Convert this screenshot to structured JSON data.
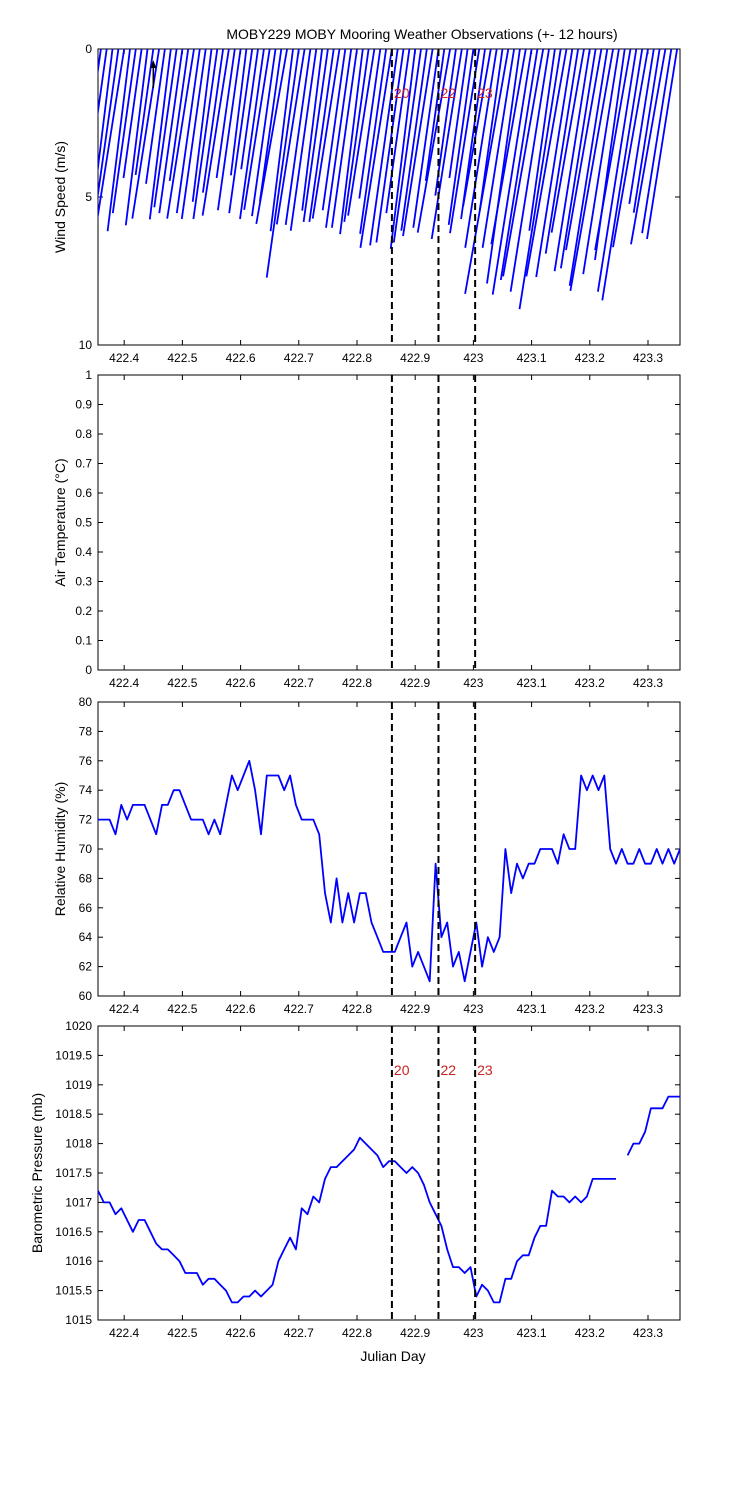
{
  "chart_data": {
    "title": "MOBY229 MOBY Mooring Weather Observations (+- 12 hours)",
    "xlabel": "Julian Day",
    "xlim": [
      422.355,
      423.355
    ],
    "xticks": [
      422.4,
      422.5,
      422.6,
      422.7,
      422.8,
      422.9,
      423,
      423.1,
      423.2,
      423.3
    ],
    "xtick_labels": [
      "422.4",
      "422.5",
      "422.6",
      "422.7",
      "422.8",
      "422.9",
      "423",
      "423.1",
      "423.2",
      "423.3"
    ],
    "line_color": "#0000ff",
    "marker_color": "#000000",
    "event_label_color": "#cc2222",
    "events": [
      {
        "label": "20",
        "x": 422.86
      },
      {
        "label": "22",
        "x": 422.94
      },
      {
        "label": "23",
        "x": 423.003
      }
    ],
    "panels": [
      {
        "type": "stick",
        "ylabel": "Wind Speed (m/s)",
        "ylim": [
          0,
          10
        ],
        "y_reversed": true,
        "yticks": [
          0,
          5,
          10
        ],
        "ytick_labels": [
          "0",
          "5",
          "10"
        ],
        "show_event_labels": true,
        "sticks": {
          "x": [
            422.36,
            422.37,
            422.38,
            422.39,
            422.4,
            422.41,
            422.42,
            422.43,
            422.44,
            422.45,
            422.46,
            422.47,
            422.48,
            422.49,
            422.5,
            422.51,
            422.52,
            422.53,
            422.54,
            422.55,
            422.56,
            422.57,
            422.58,
            422.59,
            422.6,
            422.61,
            422.62,
            422.63,
            422.64,
            422.65,
            422.66,
            422.67,
            422.68,
            422.69,
            422.7,
            422.71,
            422.72,
            422.73,
            422.74,
            422.75,
            422.76,
            422.77,
            422.78,
            422.79,
            422.8,
            422.81,
            422.82,
            422.83,
            422.84,
            422.85,
            422.86,
            422.87,
            422.88,
            422.89,
            422.9,
            422.91,
            422.92,
            422.93,
            422.94,
            422.95,
            422.96,
            422.97,
            422.98,
            422.99,
            423.0,
            423.01,
            423.02,
            423.03,
            423.04,
            423.05,
            423.06,
            423.07,
            423.08,
            423.09,
            423.1,
            423.11,
            423.12,
            423.13,
            423.14,
            423.15,
            423.16,
            423.17,
            423.18,
            423.19,
            423.2,
            423.21,
            423.22,
            423.23,
            423.24,
            423.25,
            423.26,
            423.27,
            423.28,
            423.29,
            423.3,
            423.31,
            423.32,
            423.33,
            423.34,
            423.35
          ],
          "speed": [
            6.1,
            4.7,
            5.8,
            6.1,
            5.9,
            6.2,
            5.6,
            4.4,
            6.0,
            4.3,
            5.8,
            4.6,
            5.8,
            5.4,
            5.6,
            4.5,
            5.8,
            5.6,
            5.8,
            5.2,
            5.8,
            4.9,
            5.7,
            4.4,
            5.5,
            4.3,
            5.6,
            4.1,
            5.8,
            5.5,
            5.7,
            5.2,
            6.0,
            6.2,
            7.8,
            6.0,
            6.0,
            6.2,
            5.5,
            5.9,
            5.9,
            5.8,
            5.5,
            6.1,
            6.1,
            6.3,
            5.9,
            5.7,
            5.1,
            6.3,
            6.8,
            6.7,
            6.6,
            5.6,
            6.8,
            6.6,
            6.2,
            6.4,
            6.1,
            4.5,
            6.3,
            5.0,
            6.5,
            4.4,
            6.0,
            6.3,
            5.8,
            5.4,
            6.8,
            5.5,
            8.4,
            6.8,
            8.0,
            6.7,
            8.4,
            7.9,
            7.8,
            8.3,
            6.2,
            8.9,
            7.8,
            7.8,
            7.0,
            6.3,
            7.6,
            7.5,
            6.9,
            8.1,
            8.3,
            7.7,
            7.2,
            6.9,
            8.3,
            8.6,
            6.8,
            5.3,
            5.6,
            6.7,
            6.3,
            6.5
          ],
          "direction_deg": [
            8,
            8,
            7,
            8,
            9,
            7,
            8,
            8,
            7,
            8,
            9,
            8,
            7,
            8,
            8,
            8,
            9,
            8,
            8,
            7,
            8,
            8,
            9,
            8,
            8,
            7,
            8,
            8,
            8,
            9,
            8,
            8,
            10,
            7,
            8,
            9,
            8,
            8,
            7,
            8,
            8,
            9,
            8,
            8,
            8,
            7,
            8,
            9,
            8,
            8,
            9,
            8,
            8,
            8,
            7,
            8,
            8,
            9,
            8,
            8,
            10,
            8,
            9,
            8,
            8,
            9,
            8,
            10,
            9,
            8,
            10,
            9,
            8,
            10,
            9,
            9,
            10,
            9,
            8,
            9,
            10,
            9,
            9,
            10,
            9,
            9,
            10,
            9,
            10,
            9,
            8,
            10,
            9,
            9,
            10,
            9,
            9,
            10,
            9,
            9
          ]
        }
      },
      {
        "type": "empty",
        "ylabel": "Air Temperature (°C)",
        "ylim": [
          0,
          1
        ],
        "y_reversed": false,
        "yticks": [
          0,
          0.1,
          0.2,
          0.3,
          0.4,
          0.5,
          0.6,
          0.7,
          0.8,
          0.9,
          1
        ],
        "ytick_labels": [
          "0",
          "0.1",
          "0.2",
          "0.3",
          "0.4",
          "0.5",
          "0.6",
          "0.7",
          "0.8",
          "0.9",
          "1"
        ],
        "show_event_labels": false
      },
      {
        "type": "line",
        "ylabel": "Relative Humidity (%)",
        "ylim": [
          60,
          80
        ],
        "y_reversed": false,
        "yticks": [
          60,
          62,
          64,
          66,
          68,
          70,
          72,
          74,
          76,
          78,
          80
        ],
        "ytick_labels": [
          "60",
          "62",
          "64",
          "66",
          "68",
          "70",
          "72",
          "74",
          "76",
          "78",
          "80"
        ],
        "show_event_labels": false,
        "series": [
          {
            "x": [
              422.355,
              422.365,
              422.375,
              422.385,
              422.395,
              422.405,
              422.415,
              422.425,
              422.435,
              422.445,
              422.455,
              422.465,
              422.475,
              422.485,
              422.495,
              422.505,
              422.515,
              422.525,
              422.535,
              422.545,
              422.555,
              422.565,
              422.575,
              422.585,
              422.595,
              422.605,
              422.615,
              422.625,
              422.635,
              422.645,
              422.655,
              422.665,
              422.675,
              422.685,
              422.695,
              422.705,
              422.715,
              422.725,
              422.735,
              422.745,
              422.755,
              422.765,
              422.775,
              422.785,
              422.795,
              422.805,
              422.815,
              422.825,
              422.835,
              422.845,
              422.855,
              422.865,
              422.875,
              422.885,
              422.895,
              422.905,
              422.915,
              422.925,
              422.935,
              422.945,
              422.955,
              422.965,
              422.975,
              422.985,
              422.995,
              423.005,
              423.015,
              423.025,
              423.035,
              423.045,
              423.055,
              423.065,
              423.075,
              423.085,
              423.095,
              423.105,
              423.115,
              423.125,
              423.135,
              423.145,
              423.155,
              423.165,
              423.175,
              423.185,
              423.195,
              423.205,
              423.215,
              423.225,
              423.235,
              423.245,
              423.255,
              423.265,
              423.275,
              423.285,
              423.295,
              423.305,
              423.315,
              423.325,
              423.335,
              423.345,
              423.355
            ],
            "y": [
              72,
              72,
              72,
              71,
              73,
              72,
              73,
              73,
              73,
              72,
              71,
              73,
              73,
              74,
              74,
              73,
              72,
              72,
              72,
              71,
              72,
              71,
              73,
              75,
              74,
              75,
              76,
              74,
              71,
              75,
              75,
              75,
              74,
              75,
              73,
              72,
              72,
              72,
              71,
              67,
              65,
              68,
              65,
              67,
              65,
              67,
              67,
              65,
              64,
              63,
              63,
              63,
              64,
              65,
              62,
              63,
              62,
              61,
              69,
              64,
              65,
              62,
              63,
              61,
              63,
              65,
              62,
              64,
              63,
              64,
              70,
              67,
              69,
              68,
              69,
              69,
              70,
              70,
              70,
              69,
              71,
              70,
              70,
              75,
              74,
              75,
              74,
              75,
              70,
              69,
              70,
              69,
              69,
              70,
              69,
              69,
              70,
              69,
              70,
              69,
              70
            ]
          }
        ]
      },
      {
        "type": "line",
        "ylabel": "Barometric Pressure (mb)",
        "ylim": [
          1015,
          1020
        ],
        "y_reversed": false,
        "yticks": [
          1015,
          1015.5,
          1016,
          1016.5,
          1017,
          1017.5,
          1018,
          1018.5,
          1019,
          1019.5,
          1020
        ],
        "ytick_labels": [
          "1015",
          "1015.5",
          "1016",
          "1016.5",
          "1017",
          "1017.5",
          "1018",
          "1018.5",
          "1019",
          "1019.5",
          "1020"
        ],
        "show_event_labels": true,
        "series": [
          {
            "x": [
              422.355,
              422.365,
              422.375,
              422.385,
              422.395,
              422.405,
              422.415,
              422.425,
              422.435,
              422.445,
              422.455,
              422.465,
              422.475,
              422.485,
              422.495,
              422.505,
              422.515,
              422.525,
              422.535,
              422.545,
              422.555,
              422.565,
              422.575,
              422.585,
              422.595,
              422.605,
              422.615,
              422.625,
              422.635,
              422.645,
              422.655,
              422.665,
              422.675,
              422.685,
              422.695,
              422.705,
              422.715,
              422.725,
              422.735,
              422.745,
              422.755,
              422.765,
              422.775,
              422.785,
              422.795,
              422.805,
              422.815,
              422.825,
              422.835,
              422.845,
              422.855,
              422.865,
              422.875,
              422.885,
              422.895,
              422.905,
              422.915,
              422.925,
              422.935,
              422.945,
              422.955,
              422.965,
              422.975,
              422.985,
              422.995,
              423.005,
              423.015,
              423.025,
              423.035,
              423.045,
              423.055,
              423.065,
              423.075,
              423.085,
              423.095,
              423.105,
              423.115,
              423.125,
              423.135,
              423.145,
              423.155,
              423.165,
              423.175,
              423.185,
              423.195,
              423.205,
              423.215,
              423.225,
              423.235,
              423.245
            ],
            "y": [
              1017.2,
              1017.0,
              1017.0,
              1016.8,
              1016.9,
              1016.7,
              1016.5,
              1016.7,
              1016.7,
              1016.5,
              1016.3,
              1016.2,
              1016.2,
              1016.1,
              1016.0,
              1015.8,
              1015.8,
              1015.8,
              1015.6,
              1015.7,
              1015.7,
              1015.6,
              1015.5,
              1015.3,
              1015.3,
              1015.4,
              1015.4,
              1015.5,
              1015.4,
              1015.5,
              1015.6,
              1016.0,
              1016.2,
              1016.4,
              1016.2,
              1016.9,
              1016.8,
              1017.1,
              1017.0,
              1017.4,
              1017.6,
              1017.6,
              1017.7,
              1017.8,
              1017.9,
              1018.1,
              1018.0,
              1017.9,
              1017.8,
              1017.6,
              1017.7,
              1017.7,
              1017.6,
              1017.5,
              1017.6,
              1017.5,
              1017.3,
              1017.0,
              1016.8,
              1016.6,
              1016.2,
              1015.9,
              1015.9,
              1015.8,
              1015.9,
              1015.4,
              1015.6,
              1015.5,
              1015.3,
              1015.3,
              1015.7,
              1015.7,
              1016.0,
              1016.1,
              1016.1,
              1016.4,
              1016.6,
              1016.6,
              1017.2,
              1017.1,
              1017.1,
              1017.0,
              1017.1,
              1017.0,
              1017.1,
              1017.4,
              1017.4,
              1017.4,
              1017.4,
              1017.4
            ]
          },
          {
            "x": [
              423.265,
              423.275,
              423.285,
              423.295,
              423.305,
              423.315,
              423.325,
              423.335,
              423.345,
              423.355
            ],
            "y": [
              1017.8,
              1018.0,
              1018.0,
              1018.2,
              1018.6,
              1018.6,
              1018.6,
              1018.8,
              1018.8,
              1018.8
            ]
          }
        ]
      }
    ]
  }
}
